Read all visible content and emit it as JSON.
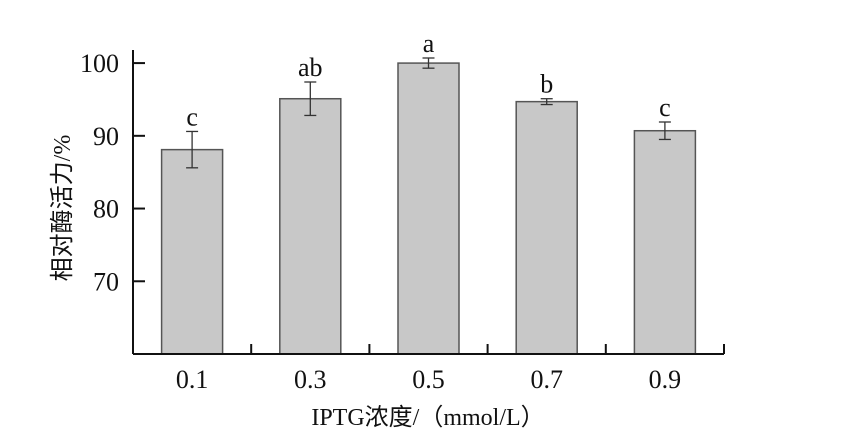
{
  "chart_data": {
    "type": "bar",
    "title": "",
    "xlabel": "IPTG浓度/（mmol/L）",
    "ylabel": "相对酶活力/%",
    "categories": [
      "0.1",
      "0.3",
      "0.5",
      "0.7",
      "0.9"
    ],
    "values": [
      88.1,
      95.1,
      100.0,
      94.7,
      90.7
    ],
    "errors": [
      2.5,
      2.3,
      0.7,
      0.4,
      1.2
    ],
    "significance": [
      "c",
      "ab",
      "a",
      "b",
      "c"
    ],
    "yticks": [
      70,
      80,
      90,
      100
    ],
    "ylim": [
      60,
      101.8
    ],
    "grid": false,
    "bar_color": "#c8c8c8",
    "edge_color": "#555555"
  }
}
